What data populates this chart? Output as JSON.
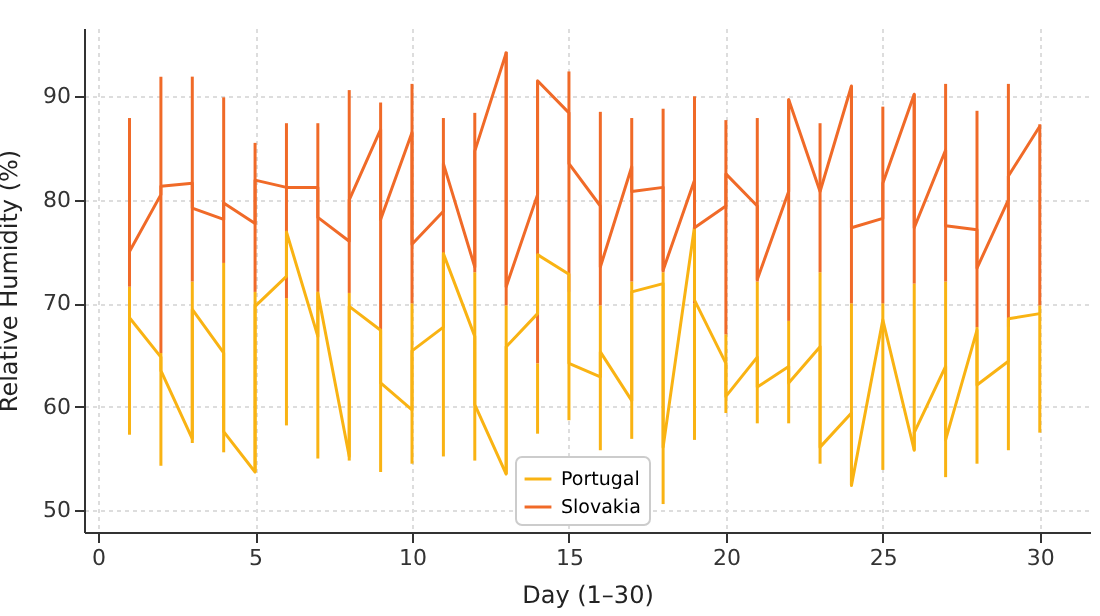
{
  "chart_data": {
    "type": "line",
    "xlabel": "Day (1–30)",
    "ylabel": "Relative Humidity (%)",
    "xlim": [
      -0.45,
      31.6
    ],
    "ylim": [
      47.9,
      96.6
    ],
    "xticks": [
      0,
      5,
      10,
      15,
      20,
      25,
      30
    ],
    "yticks": [
      50,
      60,
      70,
      80,
      90
    ],
    "grid": true,
    "legend": "bottom",
    "marker": "none",
    "line_style": "solid",
    "series": [
      {
        "name": "Portugal",
        "color": "#f9b313",
        "x": [
          1,
          1,
          2,
          2,
          3,
          3,
          4,
          4,
          5,
          5,
          6,
          6,
          7,
          7,
          8,
          8,
          9,
          9,
          10,
          10,
          11,
          11,
          12,
          12,
          13,
          13,
          14,
          14,
          15,
          15,
          16,
          16,
          17,
          17,
          18,
          18,
          19,
          19,
          20,
          20,
          21,
          21,
          22,
          22,
          23,
          23,
          24,
          24,
          25,
          25,
          26,
          26,
          27,
          27,
          28,
          28,
          29,
          29,
          30,
          30
        ],
        "values": [
          68.6,
          68.6,
          64.8,
          63.5,
          56.9,
          69.4,
          65.2,
          57.6,
          53.7,
          69.7,
          72.6,
          76.9,
          66.8,
          71.0,
          55.2,
          69.7,
          67.4,
          62.3,
          59.7,
          65.4,
          67.7,
          74.8,
          66.8,
          60.2,
          53.5,
          65.8,
          69.0,
          74.7,
          72.8,
          64.2,
          62.9,
          65.3,
          60.6,
          71.1,
          71.9,
          56.1,
          77.4,
          70.3,
          64.2,
          61.0,
          64.8,
          61.9,
          63.9,
          62.3,
          65.8,
          56.1,
          59.4,
          52.4,
          68.4,
          68.4,
          55.8,
          57.5,
          63.9,
          56.8,
          67.4,
          62.1,
          64.4,
          68.5,
          69.0,
          69.0
        ],
        "errors": [
          [
            57.3,
            71.6
          ],
          null,
          [
            54.3,
            65.2
          ],
          null,
          [
            56.5,
            72.1
          ],
          null,
          [
            55.6,
            73.9
          ],
          null,
          [
            53.7,
            71.1
          ],
          null,
          [
            58.2,
            70.5
          ],
          null,
          [
            55.0,
            71.1
          ],
          null,
          [
            54.8,
            71.0
          ],
          null,
          [
            53.7,
            67.4
          ],
          null,
          [
            54.5,
            70.0
          ],
          null,
          [
            55.2,
            69.8
          ],
          null,
          [
            54.8,
            73.0
          ],
          null,
          [
            53.5,
            69.8
          ],
          null,
          [
            57.4,
            64.2
          ],
          null,
          [
            58.7,
            71.1
          ],
          null,
          [
            55.8,
            69.8
          ],
          null,
          [
            56.9,
            72.1
          ],
          null,
          [
            50.6,
            73.0
          ],
          null,
          [
            56.8,
            70.0
          ],
          null,
          [
            59.4,
            67.0
          ],
          null,
          [
            58.4,
            72.1
          ],
          null,
          [
            58.4,
            68.3
          ],
          null,
          [
            54.5,
            73.0
          ],
          null,
          [
            52.4,
            70.0
          ],
          null,
          [
            53.9,
            70.0
          ],
          null,
          [
            55.8,
            71.9
          ],
          null,
          [
            53.2,
            72.1
          ],
          null,
          [
            54.5,
            67.7
          ],
          null,
          [
            55.8,
            67.7
          ],
          null,
          [
            57.5,
            69.8
          ],
          null
        ]
      },
      {
        "name": "Slovakia",
        "color": "#f06a28",
        "x": [
          1,
          1,
          2,
          2,
          3,
          3,
          4,
          4,
          5,
          5,
          6,
          6,
          7,
          7,
          8,
          8,
          9,
          9,
          10,
          10,
          11,
          11,
          12,
          12,
          13,
          13,
          14,
          14,
          15,
          15,
          16,
          16,
          17,
          17,
          18,
          18,
          19,
          19,
          20,
          20,
          21,
          21,
          22,
          22,
          23,
          23,
          24,
          24,
          25,
          25,
          26,
          26,
          27,
          27,
          28,
          28,
          29,
          29,
          30,
          30
        ],
        "values": [
          75.0,
          75.0,
          80.5,
          81.3,
          81.6,
          79.2,
          78.1,
          79.7,
          77.7,
          81.9,
          81.2,
          81.2,
          81.2,
          78.3,
          76.0,
          80.0,
          86.8,
          78.1,
          86.5,
          75.7,
          78.9,
          83.5,
          73.5,
          84.7,
          94.2,
          71.6,
          80.5,
          91.5,
          88.4,
          83.5,
          79.4,
          73.5,
          83.2,
          80.8,
          81.2,
          73.2,
          81.9,
          77.3,
          79.4,
          82.5,
          79.4,
          72.3,
          80.8,
          89.7,
          80.8,
          80.8,
          91.0,
          77.3,
          78.2,
          81.6,
          90.2,
          77.3,
          84.8,
          77.5,
          77.1,
          73.4,
          80.0,
          82.3,
          87.1,
          87.1
        ],
        "errors": [
          [
            71.6,
            87.9
          ],
          null,
          [
            65.2,
            91.9
          ],
          null,
          [
            72.1,
            91.9
          ],
          null,
          [
            73.9,
            89.9
          ],
          null,
          [
            71.1,
            85.5
          ],
          null,
          [
            70.5,
            87.4
          ],
          null,
          [
            71.1,
            87.4
          ],
          null,
          [
            71.0,
            90.6
          ],
          null,
          [
            67.4,
            89.4
          ],
          null,
          [
            70.0,
            91.2
          ],
          null,
          [
            69.8,
            87.9
          ],
          null,
          [
            73.0,
            88.4
          ],
          null,
          [
            69.8,
            94.3
          ],
          null,
          [
            64.2,
            91.5
          ],
          null,
          [
            71.1,
            92.4
          ],
          null,
          [
            69.8,
            88.5
          ],
          null,
          [
            72.1,
            87.9
          ],
          null,
          [
            73.0,
            88.8
          ],
          null,
          [
            70.0,
            90.0
          ],
          null,
          [
            67.0,
            87.7
          ],
          null,
          [
            72.1,
            87.9
          ],
          null,
          [
            68.3,
            89.7
          ],
          null,
          [
            73.0,
            87.4
          ],
          null,
          [
            70.0,
            91.0
          ],
          null,
          [
            70.0,
            89.0
          ],
          null,
          [
            71.9,
            90.2
          ],
          null,
          [
            72.1,
            91.2
          ],
          null,
          [
            67.7,
            88.6
          ],
          null,
          [
            67.7,
            91.2
          ],
          null,
          [
            69.8,
            87.3
          ],
          null
        ]
      }
    ]
  }
}
